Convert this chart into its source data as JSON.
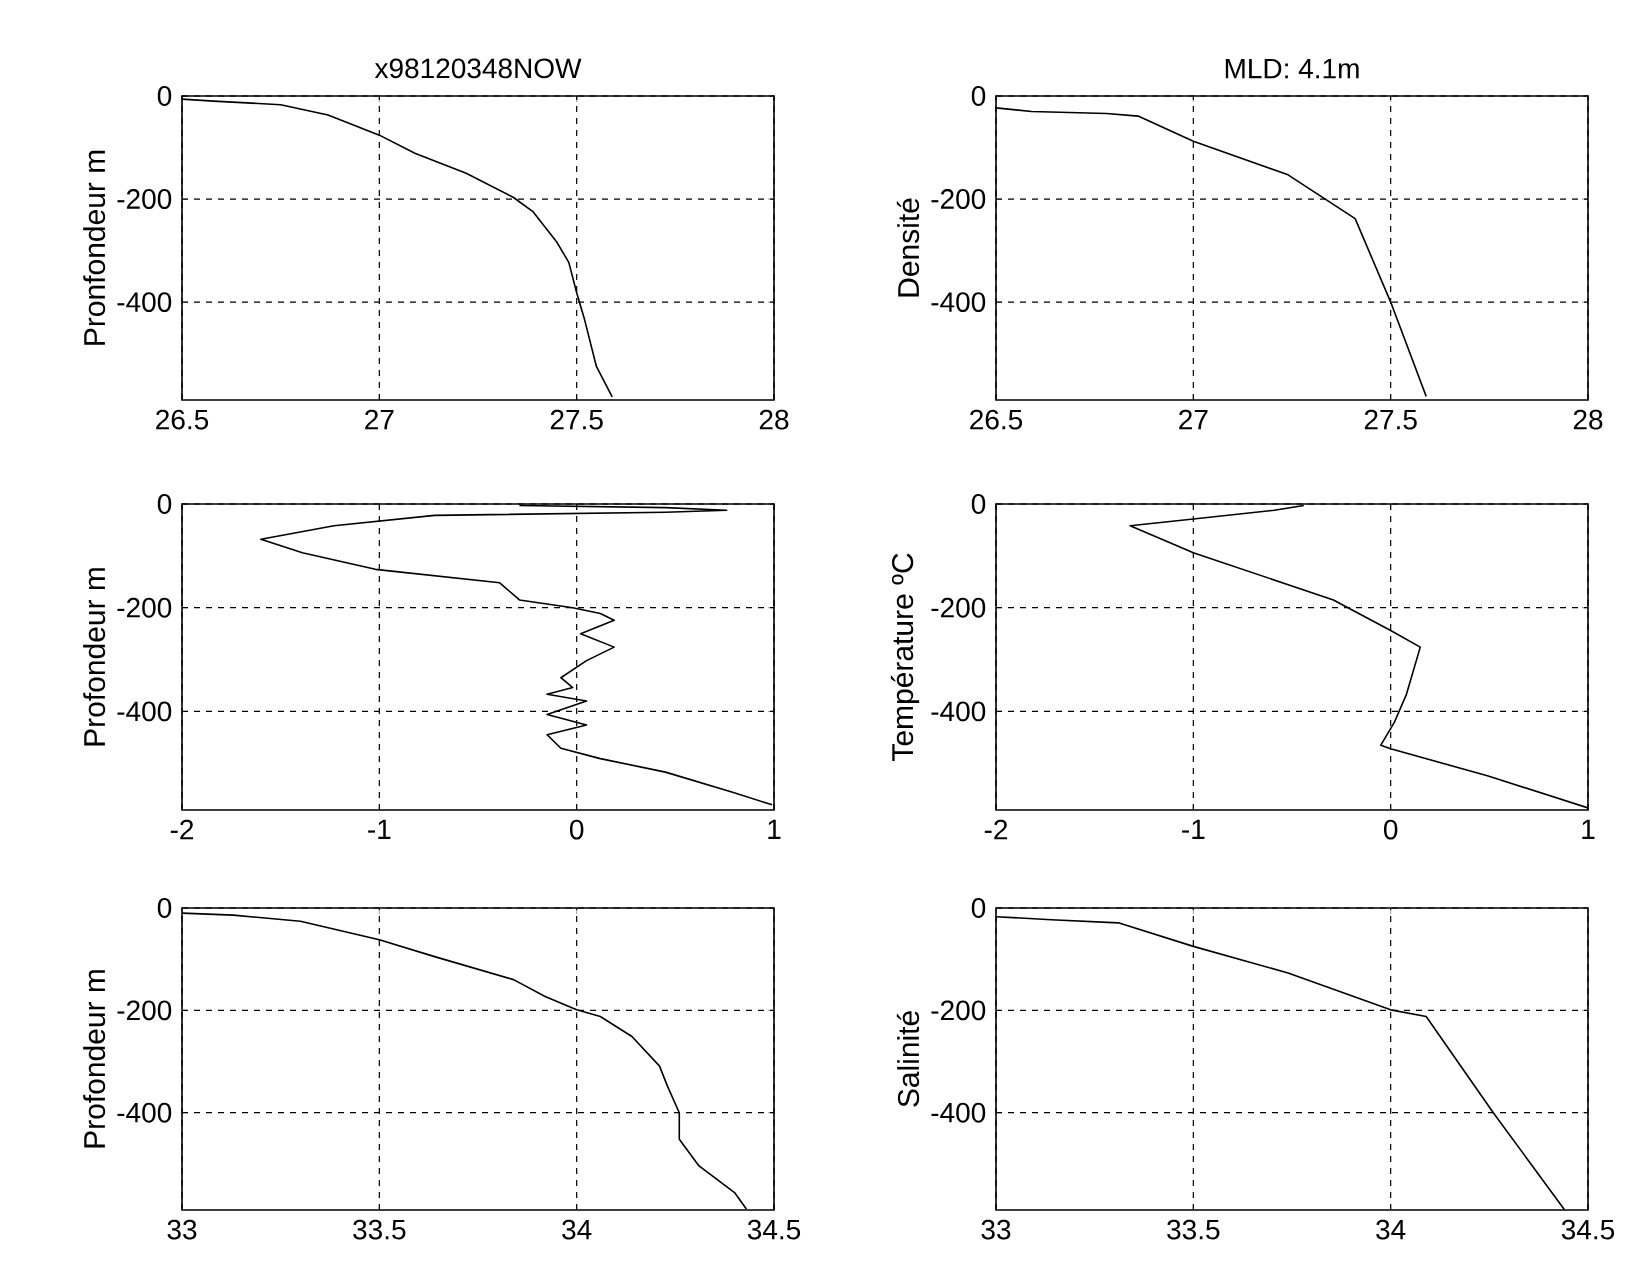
{
  "chart_data": [
    {
      "type": "line",
      "title": "x98120348NOW",
      "ylabel": "Pronfondeur m",
      "xlim": [
        26.5,
        28
      ],
      "xticks": [
        26.5,
        27,
        27.5,
        28
      ],
      "ylim": [
        -590,
        0
      ],
      "yticks": [
        0,
        -200,
        -400
      ],
      "grid": true,
      "series": [
        {
          "color": "#000000",
          "x": [
            26.5,
            26.58,
            26.75,
            26.87,
            27.0,
            27.09,
            27.22,
            27.34,
            27.39,
            27.45,
            27.48,
            27.5,
            27.52,
            27.55,
            27.59
          ],
          "values": [
            -6,
            -10,
            -17,
            -37,
            -76,
            -111,
            -150,
            -197,
            -225,
            -284,
            -323,
            -382,
            -434,
            -525,
            -584
          ]
        }
      ]
    },
    {
      "type": "line",
      "title": "MLD:  4.1m",
      "ylabel": "Densité",
      "xlim": [
        26.5,
        28
      ],
      "xticks": [
        26.5,
        27,
        27.5,
        28
      ],
      "ylim": [
        -590,
        0
      ],
      "yticks": [
        0,
        -200,
        -400
      ],
      "grid": true,
      "series": [
        {
          "color": "#000000",
          "x": [
            26.5,
            26.59,
            26.78,
            26.86,
            27.0,
            27.24,
            27.41,
            27.5,
            27.59
          ],
          "values": [
            -23,
            -30,
            -34,
            -39,
            -88,
            -153,
            -238,
            -400,
            -583
          ]
        }
      ]
    },
    {
      "type": "line",
      "ylabel": "Profondeur m",
      "xlim": [
        -2,
        1
      ],
      "xticks": [
        -2,
        -1,
        0,
        1
      ],
      "ylim": [
        -590,
        0
      ],
      "yticks": [
        0,
        -200,
        -400
      ],
      "grid": true,
      "series": [
        {
          "color": "#000000",
          "x": [
            -0.29,
            0.45,
            0.76,
            0.45,
            -0.72,
            -1.23,
            -1.6,
            -1.39,
            -1.02,
            -0.39,
            -0.29,
            -0.02,
            0.12,
            0.19,
            0.02,
            0.19,
            0.05,
            -0.08,
            -0.02,
            -0.15,
            0.05,
            -0.15,
            0.05,
            -0.15,
            -0.08,
            0.12,
            0.45,
            0.79,
            0.99
          ],
          "values": [
            -3,
            -7,
            -12,
            -16,
            -22,
            -42,
            -68,
            -94,
            -126,
            -152,
            -185,
            -200,
            -211,
            -224,
            -250,
            -276,
            -302,
            -335,
            -354,
            -367,
            -380,
            -406,
            -426,
            -445,
            -471,
            -491,
            -517,
            -556,
            -580
          ]
        }
      ]
    },
    {
      "type": "line",
      "ylabel": "Température ºC",
      "xlim": [
        -2,
        1
      ],
      "xticks": [
        -2,
        -1,
        0,
        1
      ],
      "ylim": [
        -590,
        0
      ],
      "yticks": [
        0,
        -200,
        -400
      ],
      "grid": true,
      "series": [
        {
          "color": "#000000",
          "x": [
            -0.44,
            -0.59,
            -1.0,
            -1.32,
            -1.0,
            -0.29,
            0.0,
            0.15,
            0.08,
            0.02,
            -0.05,
            0.0,
            0.49,
            1.0
          ],
          "values": [
            -3,
            -12,
            -29,
            -42,
            -94,
            -185,
            -244,
            -276,
            -367,
            -420,
            -465,
            -472,
            -524,
            -586
          ]
        }
      ]
    },
    {
      "type": "line",
      "ylabel": "Profondeur m",
      "xlim": [
        33,
        34.5
      ],
      "xticks": [
        33,
        33.5,
        34,
        34.5
      ],
      "ylim": [
        -590,
        0
      ],
      "yticks": [
        0,
        -200,
        -400
      ],
      "grid": true,
      "series": [
        {
          "color": "#000000",
          "x": [
            33.0,
            33.13,
            33.3,
            33.5,
            33.64,
            33.84,
            33.92,
            34.0,
            34.06,
            34.14,
            34.21,
            34.23,
            34.26,
            34.26,
            34.31,
            34.4,
            34.43
          ],
          "values": [
            -10,
            -14,
            -26,
            -62,
            -95,
            -140,
            -173,
            -199,
            -212,
            -251,
            -309,
            -348,
            -400,
            -452,
            -504,
            -556,
            -588
          ]
        }
      ]
    },
    {
      "type": "line",
      "ylabel": "Salinité",
      "xlim": [
        33,
        34.5
      ],
      "xticks": [
        33,
        33.5,
        34,
        34.5
      ],
      "ylim": [
        -590,
        0
      ],
      "yticks": [
        0,
        -200,
        -400
      ],
      "grid": true,
      "series": [
        {
          "color": "#000000",
          "x": [
            33.0,
            33.14,
            33.31,
            33.5,
            33.74,
            34.0,
            34.09,
            34.26,
            34.44
          ],
          "values": [
            -17,
            -23,
            -29,
            -75,
            -127,
            -199,
            -212,
            -400,
            -589
          ]
        }
      ]
    }
  ]
}
